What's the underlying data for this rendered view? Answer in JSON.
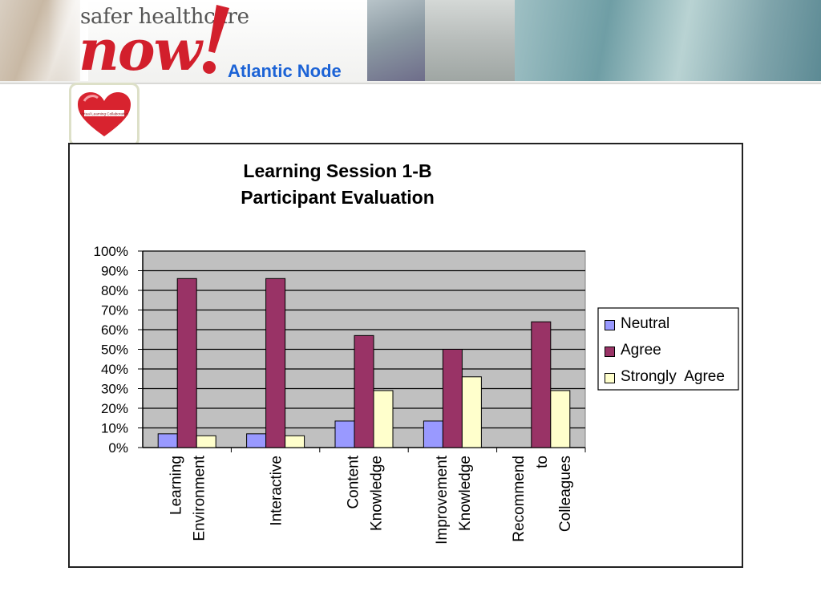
{
  "banner": {
    "brand_top": "safer healthcare",
    "brand_now": "now",
    "node": "Atlantic Node"
  },
  "logo": {
    "text": "Virtual Learning Collaborative"
  },
  "colors": {
    "neutral": "#9999ff",
    "agree": "#993366",
    "strongly_agree": "#ffffcc",
    "plot_bg": "#c0c0c0",
    "brand_red": "#d21f2c",
    "node_blue": "#1c63d6"
  },
  "chart_data": {
    "type": "bar",
    "title": [
      "Learning Session 1-B",
      "Participant Evaluation"
    ],
    "categories": [
      [
        "Learning",
        "Environment"
      ],
      [
        "Interactive"
      ],
      [
        "Content",
        "Knowledge"
      ],
      [
        "Improvement",
        "Knowledge"
      ],
      [
        "Recommend",
        "to",
        "Colleagues"
      ]
    ],
    "series": [
      {
        "name": "Neutral",
        "values": [
          7,
          7,
          13.5,
          13.5,
          0
        ]
      },
      {
        "name": "Agree",
        "values": [
          86,
          86,
          57,
          50,
          64
        ]
      },
      {
        "name": "Strongly  Agree",
        "values": [
          6,
          6,
          29,
          36,
          29
        ]
      }
    ],
    "y_ticks": [
      "0%",
      "10%",
      "20%",
      "30%",
      "40%",
      "50%",
      "60%",
      "70%",
      "80%",
      "90%",
      "100%"
    ],
    "ylim": [
      0,
      100
    ],
    "grid": true,
    "legend_position": "right"
  }
}
